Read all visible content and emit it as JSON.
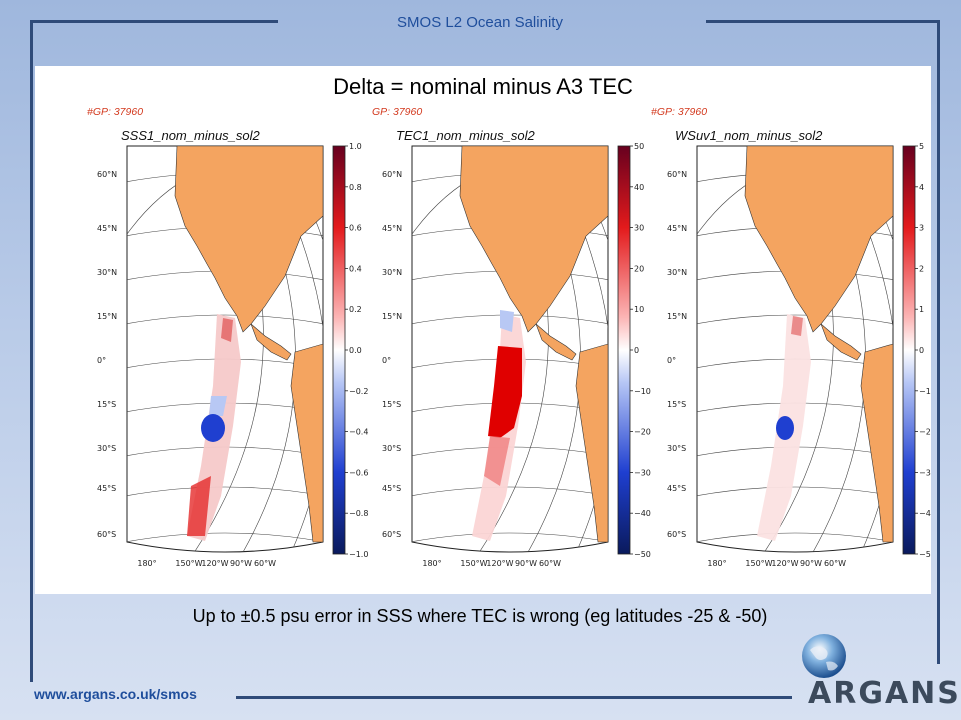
{
  "header": {
    "title": "SMOS L2 Ocean Salinity"
  },
  "slide": {
    "title": "Delta = nominal minus A3 TEC",
    "caption": "Up to ±0.5 psu error in SSS where TEC is wrong (eg latitudes -25 & -50)"
  },
  "maps": [
    {
      "gp": "#GP: 37960",
      "title": "SSS1_nom_minus_sol2",
      "colorbar_ticks": [
        "1.0",
        "0.8",
        "0.6",
        "0.4",
        "0.2",
        "0.0",
        "−0.2",
        "−0.4",
        "−0.6",
        "−0.8",
        "−1.0"
      ]
    },
    {
      "gp": "GP: 37960",
      "title": "TEC1_nom_minus_sol2",
      "colorbar_ticks": [
        "50",
        "40",
        "30",
        "20",
        "10",
        "0",
        "−10",
        "−20",
        "−30",
        "−40",
        "−50"
      ]
    },
    {
      "gp": "#GP: 37960",
      "title": "WSuv1_nom_minus_sol2",
      "colorbar_ticks": [
        "5",
        "4",
        "3",
        "2",
        "1",
        "0",
        "−1",
        "−2",
        "−3",
        "−4",
        "−5"
      ]
    }
  ],
  "lat_labels": [
    "60°N",
    "45°N",
    "30°N",
    "15°N",
    "0°",
    "15°S",
    "30°S",
    "45°S",
    "60°S"
  ],
  "lon_labels": [
    "180°",
    "150°W",
    "120°W",
    "90°W",
    "60°W"
  ],
  "colors": {
    "land": "#f4a460",
    "ocean": "#ffffff",
    "grid": "#444444",
    "accent": "#1f4e9c",
    "gp_label": "#d33a1f"
  },
  "footer": {
    "url": "www.argans.co.uk/smos",
    "logo_text": "ARGANS"
  }
}
